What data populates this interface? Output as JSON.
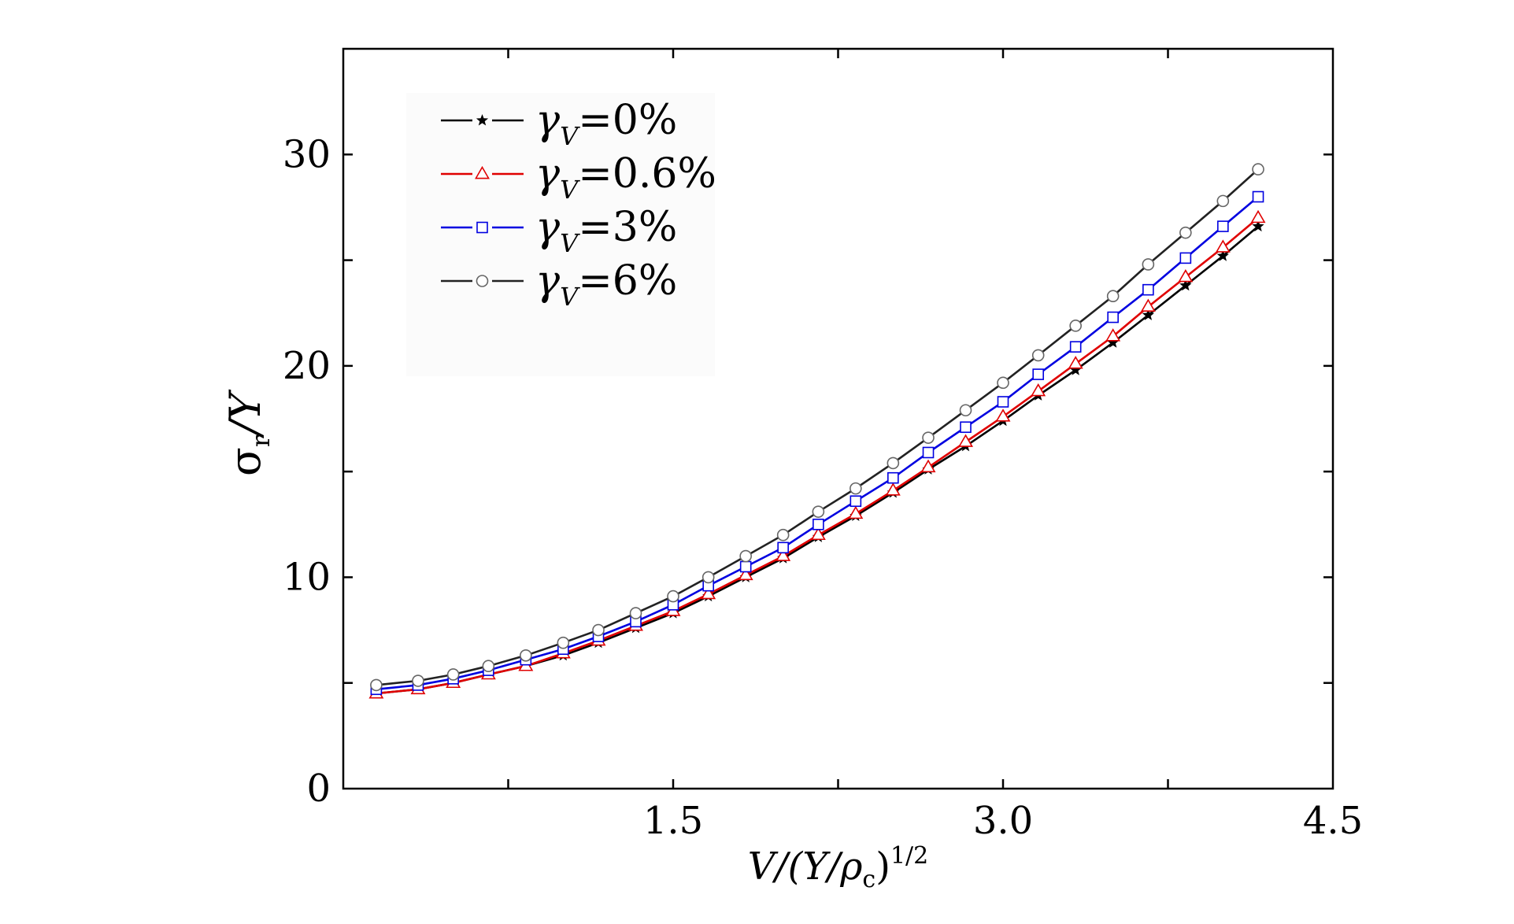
{
  "chart_data": {
    "type": "line",
    "title": "",
    "xlabel": "V/(Y/ρc)1/2",
    "xlabel_parts": {
      "main": "V/(Y/ρ",
      "sub": "c",
      "close": ")",
      "sup": "1/2"
    },
    "ylabel": "σr/Y",
    "ylabel_parts": {
      "main": "σ",
      "sub": "r",
      "rest": "/Y"
    },
    "xlim": [
      0,
      4.5
    ],
    "ylim": [
      0,
      35
    ],
    "xticks": [
      1.5,
      3.0,
      4.5
    ],
    "xtick_labels": [
      "1.5",
      "3.0",
      "4.5"
    ],
    "yticks": [
      0,
      10,
      20,
      30
    ],
    "ytick_labels": [
      "0",
      "10",
      "20",
      "30"
    ],
    "grid": false,
    "legend_position": "top-left",
    "x": [
      0.15,
      0.34,
      0.5,
      0.66,
      0.83,
      1.0,
      1.16,
      1.33,
      1.5,
      1.66,
      1.83,
      2.0,
      2.16,
      2.33,
      2.5,
      2.66,
      2.83,
      3.0,
      3.16,
      3.33,
      3.5,
      3.66,
      3.83,
      4.0,
      4.16
    ],
    "series": [
      {
        "name": "γV=0%",
        "name_parts": {
          "main": "γ",
          "sub": "V",
          "rest": "=0%"
        },
        "color": "#000000",
        "marker": "star",
        "values": [
          4.5,
          4.7,
          5.0,
          5.4,
          5.8,
          6.3,
          6.9,
          7.6,
          8.3,
          9.1,
          10.0,
          10.9,
          11.9,
          12.9,
          14.0,
          15.1,
          16.2,
          17.4,
          18.6,
          19.8,
          21.1,
          22.4,
          23.8,
          25.2,
          26.6
        ]
      },
      {
        "name": "γV=0.6%",
        "name_parts": {
          "main": "γ",
          "sub": "V",
          "rest": "=0.6%"
        },
        "color": "#e00000",
        "marker": "triangle-open",
        "values": [
          4.5,
          4.7,
          5.0,
          5.4,
          5.8,
          6.4,
          7.0,
          7.7,
          8.4,
          9.2,
          10.1,
          11.0,
          12.0,
          13.0,
          14.1,
          15.2,
          16.4,
          17.6,
          18.8,
          20.1,
          21.4,
          22.8,
          24.2,
          25.6,
          27.0
        ]
      },
      {
        "name": "γV=3%",
        "name_parts": {
          "main": "γ",
          "sub": "V",
          "rest": "=3%"
        },
        "color": "#0000e0",
        "marker": "square-open",
        "values": [
          4.7,
          4.9,
          5.2,
          5.6,
          6.1,
          6.6,
          7.2,
          7.9,
          8.7,
          9.6,
          10.5,
          11.4,
          12.5,
          13.6,
          14.7,
          15.9,
          17.1,
          18.3,
          19.6,
          20.9,
          22.3,
          23.6,
          25.1,
          26.6,
          28.0
        ]
      },
      {
        "name": "γV=6%",
        "name_parts": {
          "main": "γ",
          "sub": "V",
          "rest": "=6%"
        },
        "color": "#222222",
        "marker": "circle-open",
        "values": [
          4.9,
          5.1,
          5.4,
          5.8,
          6.3,
          6.9,
          7.5,
          8.3,
          9.1,
          10.0,
          11.0,
          12.0,
          13.1,
          14.2,
          15.4,
          16.6,
          17.9,
          19.2,
          20.5,
          21.9,
          23.3,
          24.8,
          26.3,
          27.8,
          29.3
        ]
      }
    ]
  }
}
